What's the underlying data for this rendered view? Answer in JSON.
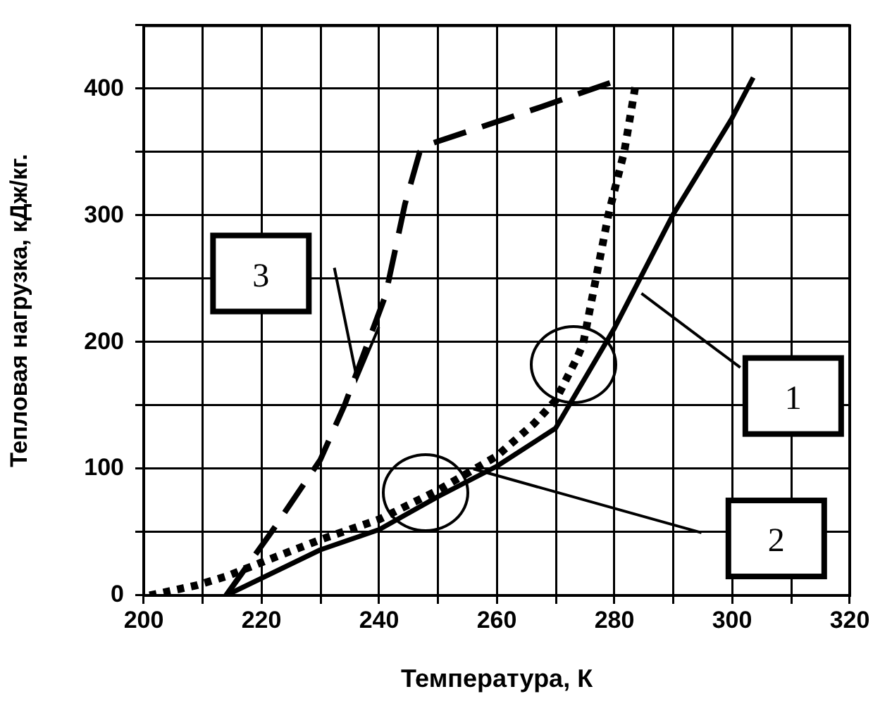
{
  "chart_data": {
    "type": "line",
    "xlabel": "Температура, К",
    "ylabel": "Тепловая нагрузка, кДж/кг.",
    "xlim": [
      200,
      320
    ],
    "xticks": [
      200,
      {
        "value": 210,
        "label": null
      },
      220,
      {
        "value": 230,
        "label": null
      },
      240,
      {
        "value": 250,
        "label": null
      },
      260,
      {
        "value": 270,
        "label": null
      },
      280,
      {
        "value": 290,
        "label": null
      },
      300,
      {
        "value": 310,
        "label": null
      },
      320
    ],
    "ylim": [
      0,
      450
    ],
    "yticks": [
      0,
      {
        "value": 50,
        "label": null
      },
      100,
      {
        "value": 150,
        "label": null
      },
      200,
      {
        "value": 250,
        "label": null
      },
      300,
      {
        "value": 350,
        "label": null
      },
      400,
      {
        "value": 450,
        "label": null
      }
    ],
    "grid": true,
    "legend": false,
    "marker": "none",
    "series": [
      {
        "name": "1",
        "color": "#000000",
        "line_style": "solid",
        "x": [
          214,
          230,
          240,
          250,
          260,
          270,
          280,
          290,
          300,
          303.6
        ],
        "values": [
          0,
          36,
          52,
          78,
          102,
          132,
          211,
          301,
          377,
          409
        ]
      },
      {
        "name": "2",
        "color": "#000000",
        "line_style": "dotted",
        "x": [
          201,
          209,
          214,
          220,
          230,
          240,
          250,
          260,
          266.4,
          270,
          273.7,
          274.7,
          279,
          281.7,
          283.7
        ],
        "values": [
          0,
          8,
          15,
          26,
          44,
          60,
          83,
          110,
          136,
          154,
          188,
          199,
          301,
          351,
          406
        ]
      },
      {
        "name": "3",
        "color": "#000000",
        "line_style": "dashed",
        "x": [
          214,
          221.7,
          230,
          234.2,
          241.1,
          244.4,
          246.9,
          248.3,
          257.4,
          266.4,
          280
        ],
        "values": [
          0,
          50,
          107,
          151,
          237,
          309,
          350,
          356,
          370,
          384,
          406
        ]
      }
    ]
  }
}
